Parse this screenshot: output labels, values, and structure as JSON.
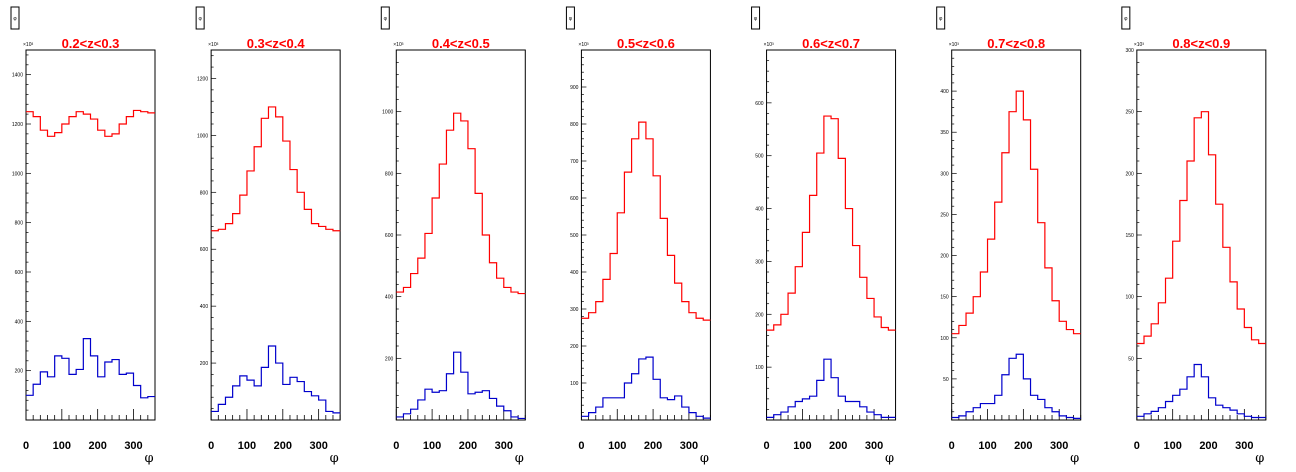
{
  "chart_data": [
    {
      "type": "histogram",
      "title": "0.2<z<0.3",
      "xlabel": "φ",
      "stat_box_label": "φ",
      "xlim": [
        0,
        360
      ],
      "ylim": [
        0,
        1500
      ],
      "x_ticks": [
        0,
        100,
        200,
        300
      ],
      "y_ticks": [
        200,
        400,
        600,
        800,
        1000,
        1200,
        1400
      ],
      "y_exponent": "×10³",
      "bin_edges": [
        0,
        20,
        40,
        60,
        80,
        100,
        120,
        140,
        160,
        180,
        200,
        220,
        240,
        260,
        280,
        300,
        320,
        340,
        360
      ],
      "series": [
        {
          "color": "#ff0000",
          "values": [
            1250,
            1230,
            1175,
            1150,
            1165,
            1200,
            1230,
            1250,
            1240,
            1220,
            1175,
            1150,
            1160,
            1200,
            1230,
            1255,
            1250,
            1245
          ]
        },
        {
          "color": "#0000cc",
          "values": [
            100,
            145,
            195,
            175,
            260,
            250,
            185,
            205,
            330,
            260,
            175,
            235,
            245,
            185,
            190,
            140,
            90,
            95
          ]
        }
      ]
    },
    {
      "type": "histogram",
      "title": "0.3<z<0.4",
      "xlabel": "φ",
      "stat_box_label": "φ",
      "xlim": [
        0,
        360
      ],
      "ylim": [
        0,
        1300
      ],
      "x_ticks": [
        0,
        100,
        200,
        300
      ],
      "y_ticks": [
        200,
        400,
        600,
        800,
        1000,
        1200
      ],
      "y_exponent": "×10³",
      "bin_edges": [
        0,
        20,
        40,
        60,
        80,
        100,
        120,
        140,
        160,
        180,
        200,
        220,
        240,
        260,
        280,
        300,
        320,
        340,
        360
      ],
      "series": [
        {
          "color": "#ff0000",
          "values": [
            665,
            670,
            690,
            725,
            790,
            875,
            960,
            1060,
            1100,
            1065,
            980,
            880,
            800,
            740,
            690,
            680,
            670,
            665
          ]
        },
        {
          "color": "#0000cc",
          "values": [
            30,
            55,
            80,
            120,
            155,
            140,
            120,
            185,
            260,
            200,
            125,
            150,
            135,
            100,
            85,
            70,
            30,
            25
          ]
        }
      ]
    },
    {
      "type": "histogram",
      "title": "0.4<z<0.5",
      "xlabel": "φ",
      "stat_box_label": "φ",
      "xlim": [
        0,
        360
      ],
      "ylim": [
        0,
        1200
      ],
      "x_ticks": [
        0,
        100,
        200,
        300
      ],
      "y_ticks": [
        200,
        400,
        600,
        800,
        1000
      ],
      "y_exponent": "×10³",
      "bin_edges": [
        0,
        20,
        40,
        60,
        80,
        100,
        120,
        140,
        160,
        180,
        200,
        220,
        240,
        260,
        280,
        300,
        320,
        340,
        360
      ],
      "series": [
        {
          "color": "#ff0000",
          "values": [
            415,
            430,
            475,
            525,
            605,
            720,
            830,
            940,
            995,
            970,
            880,
            735,
            600,
            510,
            460,
            430,
            415,
            410
          ]
        },
        {
          "color": "#0000cc",
          "values": [
            10,
            20,
            35,
            65,
            100,
            90,
            95,
            150,
            220,
            155,
            85,
            90,
            95,
            70,
            45,
            30,
            10,
            5
          ]
        }
      ]
    },
    {
      "type": "histogram",
      "title": "0.5<z<0.6",
      "xlabel": "φ",
      "stat_box_label": "φ",
      "xlim": [
        0,
        360
      ],
      "ylim": [
        0,
        1000
      ],
      "x_ticks": [
        0,
        100,
        200,
        300
      ],
      "y_ticks": [
        100,
        200,
        300,
        400,
        500,
        600,
        700,
        800,
        900
      ],
      "y_exponent": "×10³",
      "bin_edges": [
        0,
        20,
        40,
        60,
        80,
        100,
        120,
        140,
        160,
        180,
        200,
        220,
        240,
        260,
        280,
        300,
        320,
        340,
        360
      ],
      "series": [
        {
          "color": "#ff0000",
          "values": [
            275,
            290,
            320,
            380,
            450,
            560,
            670,
            760,
            805,
            760,
            660,
            545,
            445,
            370,
            320,
            290,
            275,
            270
          ]
        },
        {
          "color": "#0000cc",
          "values": [
            10,
            20,
            35,
            60,
            60,
            60,
            100,
            125,
            165,
            170,
            110,
            60,
            55,
            65,
            35,
            20,
            10,
            5
          ]
        }
      ]
    },
    {
      "type": "histogram",
      "title": "0.6<z<0.7",
      "xlabel": "φ",
      "stat_box_label": "φ",
      "xlim": [
        0,
        360
      ],
      "ylim": [
        0,
        700
      ],
      "x_ticks": [
        0,
        100,
        200,
        300
      ],
      "y_ticks": [
        100,
        200,
        300,
        400,
        500,
        600
      ],
      "y_exponent": "×10³",
      "bin_edges": [
        0,
        20,
        40,
        60,
        80,
        100,
        120,
        140,
        160,
        180,
        200,
        220,
        240,
        260,
        280,
        300,
        320,
        340,
        360
      ],
      "series": [
        {
          "color": "#ff0000",
          "values": [
            170,
            180,
            200,
            240,
            290,
            355,
            425,
            505,
            575,
            570,
            495,
            400,
            330,
            270,
            230,
            195,
            175,
            170
          ]
        },
        {
          "color": "#0000cc",
          "values": [
            5,
            10,
            15,
            25,
            35,
            40,
            45,
            75,
            115,
            80,
            45,
            35,
            35,
            25,
            15,
            10,
            5,
            5
          ]
        }
      ]
    },
    {
      "type": "histogram",
      "title": "0.7<z<0.8",
      "xlabel": "φ",
      "stat_box_label": "φ",
      "xlim": [
        0,
        360
      ],
      "ylim": [
        0,
        450
      ],
      "x_ticks": [
        0,
        100,
        200,
        300
      ],
      "y_ticks": [
        50,
        100,
        150,
        200,
        250,
        300,
        350,
        400
      ],
      "y_exponent": "×10³",
      "bin_edges": [
        0,
        20,
        40,
        60,
        80,
        100,
        120,
        140,
        160,
        180,
        200,
        220,
        240,
        260,
        280,
        300,
        320,
        340,
        360
      ],
      "series": [
        {
          "color": "#ff0000",
          "values": [
            105,
            115,
            130,
            150,
            180,
            220,
            265,
            325,
            375,
            400,
            365,
            305,
            240,
            185,
            145,
            120,
            110,
            105
          ]
        },
        {
          "color": "#0000cc",
          "values": [
            3,
            5,
            10,
            15,
            20,
            20,
            30,
            55,
            75,
            80,
            50,
            30,
            25,
            15,
            10,
            5,
            3,
            2
          ]
        }
      ]
    },
    {
      "type": "histogram",
      "title": "0.8<z<0.9",
      "xlabel": "φ",
      "stat_box_label": "φ",
      "xlim": [
        0,
        360
      ],
      "ylim": [
        0,
        300
      ],
      "x_ticks": [
        0,
        100,
        200,
        300
      ],
      "y_ticks": [
        50,
        100,
        150,
        200,
        250,
        300
      ],
      "y_exponent": "×10³",
      "bin_edges": [
        0,
        20,
        40,
        60,
        80,
        100,
        120,
        140,
        160,
        180,
        200,
        220,
        240,
        260,
        280,
        300,
        320,
        340,
        360
      ],
      "series": [
        {
          "color": "#ff0000",
          "values": [
            62,
            68,
            78,
            95,
            115,
            145,
            178,
            210,
            245,
            250,
            215,
            175,
            140,
            112,
            90,
            75,
            65,
            62
          ]
        },
        {
          "color": "#0000cc",
          "values": [
            3,
            5,
            7,
            10,
            15,
            20,
            25,
            35,
            45,
            35,
            18,
            12,
            10,
            8,
            5,
            3,
            2,
            2
          ]
        }
      ]
    }
  ]
}
